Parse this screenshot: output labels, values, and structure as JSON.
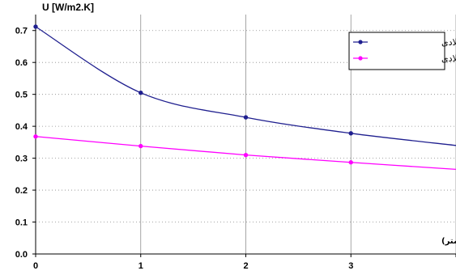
{
  "chart_data": {
    "type": "line",
    "ylabel": "U [W/m2.K]",
    "annotation": "ضخامت عایق حرارتی تکمیلی (سانتیمتر)",
    "x_ticks": [
      0,
      1,
      2,
      3,
      4
    ],
    "y_ticks": [
      0.0,
      0.1,
      0.2,
      0.3,
      0.4,
      0.5,
      0.6,
      0.7
    ],
    "x_tick_labels": [
      "0",
      "1",
      "2",
      "3",
      ""
    ],
    "y_tick_labels": [
      "0.0",
      "0.1",
      "0.2",
      "0.3",
      "0.4",
      "0.5",
      "0.6",
      "0.7"
    ],
    "xlim": [
      0,
      4
    ],
    "ylim": [
      0,
      0.75
    ],
    "grid": true,
    "legend_position": "top-right",
    "series": [
      {
        "name": "با وادار فولادی",
        "color": "#1f1f8f",
        "x": [
          0,
          1,
          2,
          3
        ],
        "values": [
          0.712,
          0.505,
          0.428,
          0.378
        ],
        "curve_to": [
          4,
          0.34
        ]
      },
      {
        "name": "بدون وادار فولادی",
        "color": "#ff00ff",
        "x": [
          0,
          1,
          2,
          3
        ],
        "values": [
          0.368,
          0.338,
          0.31,
          0.287
        ],
        "curve_to": [
          4,
          0.265
        ]
      }
    ]
  }
}
